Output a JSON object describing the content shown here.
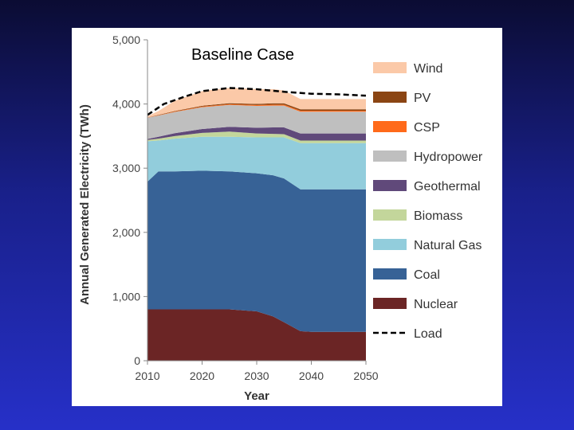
{
  "colors": {
    "background_top": "#0b0c33",
    "background_bottom": "#2630c8",
    "panel": "#ffffff"
  },
  "chart_data": {
    "type": "area",
    "stacked": true,
    "title": "Baseline Case",
    "xlabel": "Year",
    "ylabel": "Annual Generated Electricity (TWh)",
    "xlim": [
      2010,
      2050
    ],
    "ylim": [
      0,
      5000
    ],
    "xticks": [
      2010,
      2020,
      2030,
      2040,
      2050
    ],
    "yticks": [
      0,
      1000,
      2000,
      3000,
      4000,
      5000
    ],
    "ytick_labels": [
      "0",
      "1,000",
      "2,000",
      "3,000",
      "4,000",
      "5,000"
    ],
    "x": [
      2010,
      2012,
      2015,
      2020,
      2025,
      2030,
      2033,
      2035,
      2038,
      2040,
      2045,
      2050
    ],
    "legend_position": "right",
    "series": [
      {
        "name": "Nuclear",
        "color": "#6b2525",
        "values": [
          800,
          800,
          800,
          800,
          800,
          770,
          690,
          600,
          460,
          450,
          450,
          450
        ]
      },
      {
        "name": "Coal",
        "color": "#376296",
        "values": [
          1990,
          2150,
          2150,
          2160,
          2150,
          2150,
          2200,
          2240,
          2210,
          2220,
          2220,
          2220
        ]
      },
      {
        "name": "Natural Gas",
        "color": "#92cddc",
        "values": [
          630,
          480,
          510,
          530,
          540,
          560,
          590,
          640,
          720,
          720,
          720,
          720
        ]
      },
      {
        "name": "Biomass",
        "color": "#c3d69b",
        "values": [
          20,
          30,
          40,
          60,
          80,
          60,
          55,
          50,
          40,
          40,
          40,
          40
        ]
      },
      {
        "name": "Geothermal",
        "color": "#60497a",
        "values": [
          15,
          30,
          45,
          60,
          75,
          90,
          100,
          105,
          110,
          110,
          110,
          110
        ]
      },
      {
        "name": "Hydropower",
        "color": "#bfbfbf",
        "values": [
          330,
          330,
          330,
          340,
          340,
          340,
          340,
          340,
          340,
          340,
          340,
          340
        ]
      },
      {
        "name": "CSP",
        "color": "#ff6a1a",
        "values": [
          3,
          5,
          8,
          10,
          12,
          14,
          15,
          15,
          16,
          16,
          16,
          16
        ]
      },
      {
        "name": "PV",
        "color": "#8b4513",
        "values": [
          3,
          5,
          8,
          12,
          15,
          18,
          20,
          20,
          22,
          22,
          22,
          22
        ]
      },
      {
        "name": "Wind",
        "color": "#fbc9a8",
        "values": [
          20,
          60,
          160,
          230,
          240,
          230,
          220,
          200,
          160,
          160,
          160,
          160
        ]
      }
    ],
    "load": {
      "name": "Load",
      "x": [
        2010,
        2013,
        2017,
        2020,
        2025,
        2030,
        2035,
        2040,
        2045,
        2050
      ],
      "values": [
        3830,
        4000,
        4120,
        4200,
        4250,
        4230,
        4190,
        4160,
        4150,
        4130
      ],
      "style": "dashed",
      "color": "#000000"
    },
    "legend_order": [
      "Wind",
      "PV",
      "CSP",
      "Hydropower",
      "Geothermal",
      "Biomass",
      "Natural Gas",
      "Coal",
      "Nuclear",
      "Load"
    ]
  }
}
